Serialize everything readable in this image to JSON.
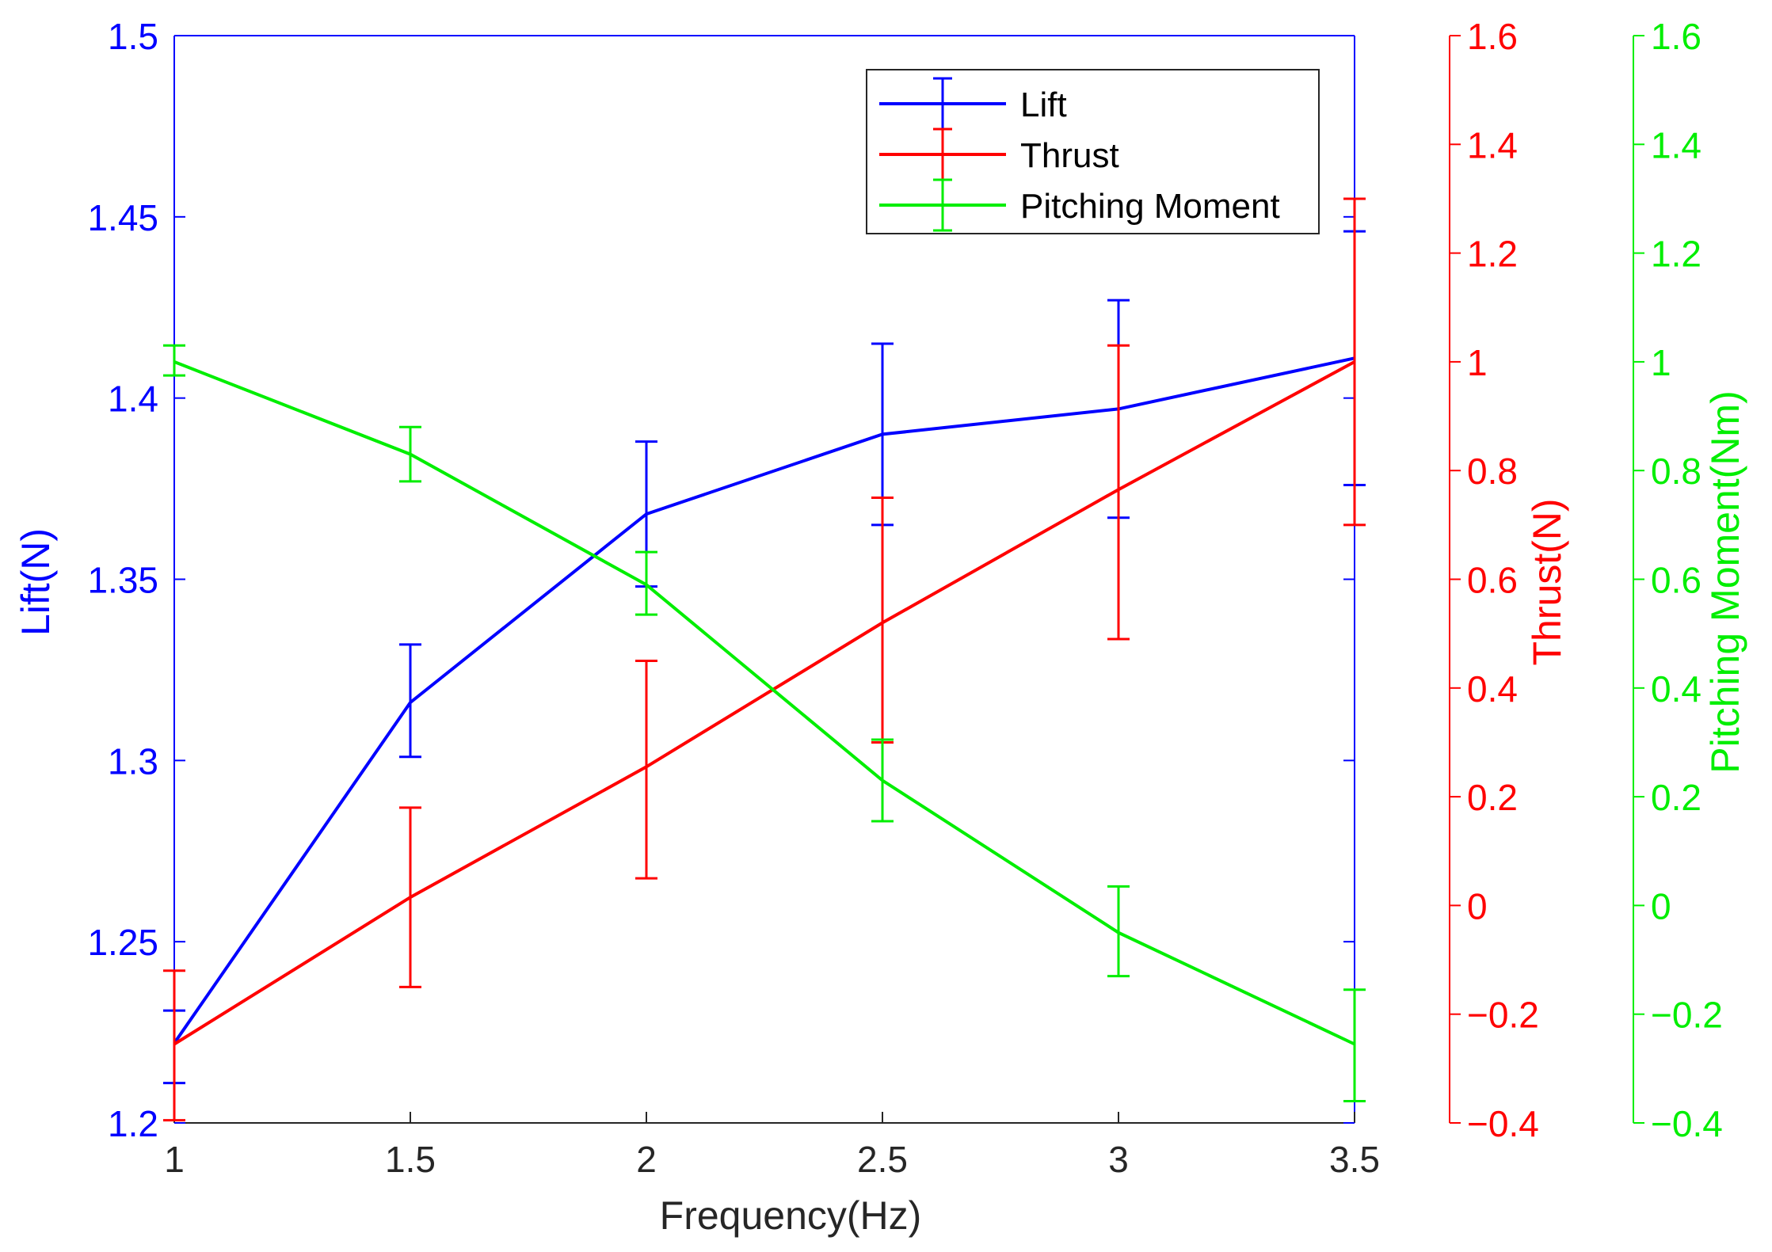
{
  "chart_data": {
    "type": "line",
    "title": "",
    "xlabel": "Frequency(Hz)",
    "x": [
      1,
      1.5,
      2,
      2.5,
      3,
      3.5
    ],
    "xlim": [
      1,
      3.5
    ],
    "xticks": [
      "1",
      "1.5",
      "2",
      "2.5",
      "3",
      "3.5"
    ],
    "axes": [
      {
        "id": "lift",
        "label": "Lift(N)",
        "side": "left",
        "color": "#0000ff",
        "lim": [
          1.2,
          1.5
        ],
        "ticks": [
          1.2,
          1.25,
          1.3,
          1.35,
          1.4,
          1.45,
          1.5
        ],
        "tick_labels": [
          "1.2",
          "1.25",
          "1.3",
          "1.35",
          "1.4",
          "1.45",
          "1.5"
        ]
      },
      {
        "id": "thrust",
        "label": "Thrust(N)",
        "side": "right",
        "color": "#ff0000",
        "lim": [
          -0.4,
          1.6
        ],
        "ticks": [
          -0.4,
          -0.2,
          0,
          0.2,
          0.4,
          0.6,
          0.8,
          1,
          1.2,
          1.4,
          1.6
        ],
        "tick_labels": [
          "−0.4",
          "−0.2",
          "0",
          "0.2",
          "0.4",
          "0.6",
          "0.8",
          "1",
          "1.2",
          "1.4",
          "1.6"
        ]
      },
      {
        "id": "moment",
        "label": "Pitching Moment(Nm)",
        "side": "right-outer",
        "color": "#00ee00",
        "lim": [
          -0.4,
          1.6
        ],
        "ticks": [
          -0.4,
          -0.2,
          0,
          0.2,
          0.4,
          0.6,
          0.8,
          1,
          1.2,
          1.4,
          1.6
        ],
        "tick_labels": [
          "−0.4",
          "−0.2",
          "0",
          "0.2",
          "0.4",
          "0.6",
          "0.8",
          "1",
          "1.2",
          "1.4",
          "1.6"
        ]
      }
    ],
    "series": [
      {
        "name": "Lift",
        "axis": "lift",
        "color": "#0000ff",
        "values": [
          1.222,
          1.316,
          1.368,
          1.39,
          1.397,
          1.411
        ],
        "lower": [
          1.211,
          1.301,
          1.348,
          1.365,
          1.367,
          1.376
        ],
        "upper": [
          1.231,
          1.332,
          1.388,
          1.415,
          1.427,
          1.446
        ]
      },
      {
        "name": "Thrust",
        "axis": "thrust",
        "color": "#ff0000",
        "values": [
          -0.255,
          0.015,
          0.255,
          0.52,
          0.765,
          1.0
        ],
        "lower": [
          -0.395,
          -0.15,
          0.05,
          0.3,
          0.49,
          0.7
        ],
        "upper": [
          -0.12,
          0.18,
          0.45,
          0.75,
          1.03,
          1.3
        ]
      },
      {
        "name": "Pitching Moment",
        "axis": "moment",
        "color": "#00ee00",
        "values": [
          1.0,
          0.83,
          0.59,
          0.23,
          -0.05,
          -0.255
        ],
        "lower": [
          0.975,
          0.78,
          0.535,
          0.155,
          -0.13,
          -0.36
        ],
        "upper": [
          1.03,
          0.88,
          0.65,
          0.305,
          0.035,
          -0.155
        ]
      }
    ],
    "legend": {
      "position": "top-right",
      "entries": [
        "Lift",
        "Thrust",
        "Pitching Moment"
      ]
    },
    "grid": false
  }
}
